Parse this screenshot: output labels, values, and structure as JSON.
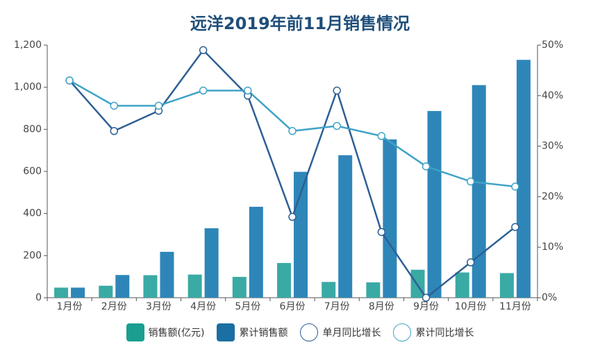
{
  "chart_data": {
    "type": "bar",
    "title": "远洋2019年前11月销售情况",
    "categories": [
      "1月份",
      "2月份",
      "3月份",
      "4月份",
      "5月份",
      "6月份",
      "7月份",
      "8月份",
      "9月份",
      "10月份",
      "11月份"
    ],
    "y_left": {
      "ylim": [
        0,
        1200
      ],
      "ticks": [
        "0",
        "200",
        "400",
        "600",
        "800",
        "1,000",
        "1,200"
      ]
    },
    "y_right": {
      "ylim": [
        0,
        50
      ],
      "ticks": [
        "0%",
        "10%",
        "20%",
        "30%",
        "40%",
        "50%"
      ]
    },
    "series": [
      {
        "name": "销售额(亿元)",
        "kind": "bar",
        "axis": "left",
        "color": "#3aaaa4",
        "values": [
          48,
          57,
          107,
          110,
          99,
          165,
          75,
          73,
          133,
          120,
          117
        ]
      },
      {
        "name": "累计销售额",
        "kind": "bar",
        "axis": "left",
        "color": "#2e86b8",
        "values": [
          48,
          108,
          218,
          330,
          432,
          598,
          677,
          752,
          887,
          1010,
          1130
        ]
      },
      {
        "name": "单月同比增长",
        "kind": "line",
        "axis": "right",
        "color": "#2d5f94",
        "values": [
          43,
          33,
          37,
          49,
          40,
          16,
          41,
          13,
          0,
          7,
          14
        ]
      },
      {
        "name": "累计同比增长",
        "kind": "line",
        "axis": "right",
        "color": "#3fa3c6",
        "values": [
          43,
          38,
          38,
          41,
          41,
          33,
          34,
          32,
          26,
          23,
          22
        ]
      }
    ]
  }
}
